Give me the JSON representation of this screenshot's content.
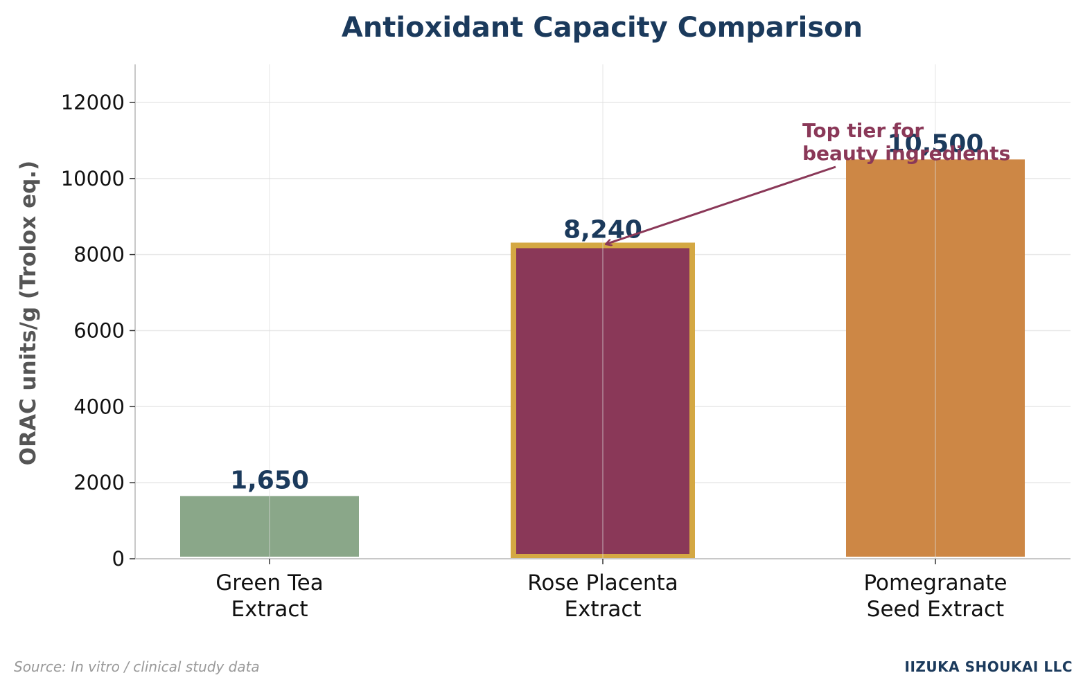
{
  "chart_data": {
    "type": "bar",
    "title": "Antioxidant Capacity Comparison",
    "xlabel": "",
    "ylabel": "ORAC units/g (Trolox eq.)",
    "ylim": [
      0,
      13000
    ],
    "yticks": [
      0,
      2000,
      4000,
      6000,
      8000,
      10000,
      12000
    ],
    "ytick_labels": [
      "0",
      "2000",
      "4000",
      "6000",
      "8000",
      "10000",
      "12000"
    ],
    "grid": true,
    "categories": [
      [
        "Green Tea",
        "Extract"
      ],
      [
        "Rose Placenta",
        "Extract"
      ],
      [
        "Pomegranate",
        "Seed Extract"
      ]
    ],
    "values": [
      1650,
      8240,
      10500
    ],
    "value_labels": [
      "1,650",
      "8,240",
      "10,500"
    ],
    "bar_colors": [
      "#8aa789",
      "#8a3858",
      "#cd8745"
    ],
    "highlight": {
      "index": 1,
      "edge_color": "#d4a843"
    },
    "annotation": {
      "lines": [
        "Top tier for",
        "beauty ingredients"
      ],
      "target_index": 1,
      "color": "#8a3858"
    }
  },
  "colors": {
    "title": "#1b3a5c",
    "value_label": "#1b3a5c",
    "company": "#1b3a5c",
    "grid": "#e8e8e8",
    "axis": "#c8c8c8"
  },
  "footer": {
    "source": "Source: In vitro / clinical study data",
    "company": "IIZUKA SHOUKAI LLC"
  }
}
